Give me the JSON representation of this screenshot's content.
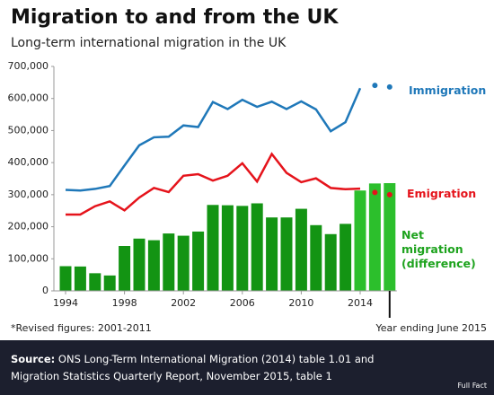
{
  "chart_data": {
    "type": "bar_line",
    "title": "Migration to and from the UK",
    "subtitle": "Long-term international migration in the UK",
    "categories": [
      "1994",
      null,
      null,
      null,
      "1998",
      null,
      null,
      null,
      "2002",
      null,
      null,
      null,
      "2006",
      null,
      null,
      null,
      "2010",
      null,
      null,
      null,
      "2014",
      null,
      null
    ],
    "series": [
      {
        "name": "Immigration",
        "kind": "line",
        "color": "#1f78b9",
        "values": [
          315000,
          313000,
          318000,
          327000,
          391000,
          454000,
          479000,
          481000,
          516000,
          511000,
          589000,
          567000,
          596000,
          574000,
          590000,
          567000,
          591000,
          566000,
          498000,
          526000,
          632000,
          null,
          null
        ],
        "points": [
          null,
          null,
          null,
          null,
          null,
          null,
          null,
          null,
          null,
          null,
          null,
          null,
          null,
          null,
          null,
          null,
          null,
          null,
          null,
          null,
          null,
          641000,
          636000
        ]
      },
      {
        "name": "Emigration",
        "kind": "line",
        "color": "#e5131b",
        "values": [
          238000,
          238000,
          264000,
          279000,
          251000,
          291000,
          321000,
          308000,
          359000,
          364000,
          344000,
          359000,
          398000,
          341000,
          427000,
          368000,
          339000,
          351000,
          321000,
          317000,
          319000,
          null,
          null
        ],
        "points": [
          null,
          null,
          null,
          null,
          null,
          null,
          null,
          null,
          null,
          null,
          null,
          null,
          null,
          null,
          null,
          null,
          null,
          null,
          null,
          null,
          null,
          307000,
          300000
        ]
      },
      {
        "name": "Net migration (difference)",
        "kind": "bar",
        "color": "#1ea31e",
        "colors": [
          "#139413",
          "#139413",
          "#139413",
          "#139413",
          "#139413",
          "#139413",
          "#139413",
          "#139413",
          "#139413",
          "#139413",
          "#139413",
          "#139413",
          "#139413",
          "#139413",
          "#139413",
          "#139413",
          "#139413",
          "#139413",
          "#139413",
          "#139413",
          "#2cbf2c",
          "#2cbf2c",
          "#2cbf2c"
        ],
        "values": [
          77000,
          76000,
          55000,
          48000,
          140000,
          163000,
          158000,
          179000,
          172000,
          185000,
          268000,
          267000,
          265000,
          273000,
          229000,
          229000,
          256000,
          205000,
          177000,
          209000,
          313000,
          335000,
          336000
        ]
      }
    ],
    "ylim": [
      0,
      700000
    ],
    "yticks": [
      0,
      {
        "value": 100000,
        "label": "100,000"
      },
      {
        "value": 200000,
        "label": "200,000"
      },
      {
        "value": 300000,
        "label": "300,000"
      },
      {
        "value": 400000,
        "label": "400,000"
      },
      {
        "value": 500000,
        "label": "500,000"
      },
      {
        "value": 600000,
        "label": "600,000"
      },
      {
        "value": 700000,
        "label": "700,000"
      }
    ],
    "footnote": "*Revised figures: 2001-2011",
    "annotation": "Year ending June 2015",
    "source_label": "Source:",
    "source": "ONS Long-Term International Migration (2014) table 1.01 and Migration Statistics Quarterly Report, November 2015, table 1",
    "brand": "Full Fact"
  }
}
